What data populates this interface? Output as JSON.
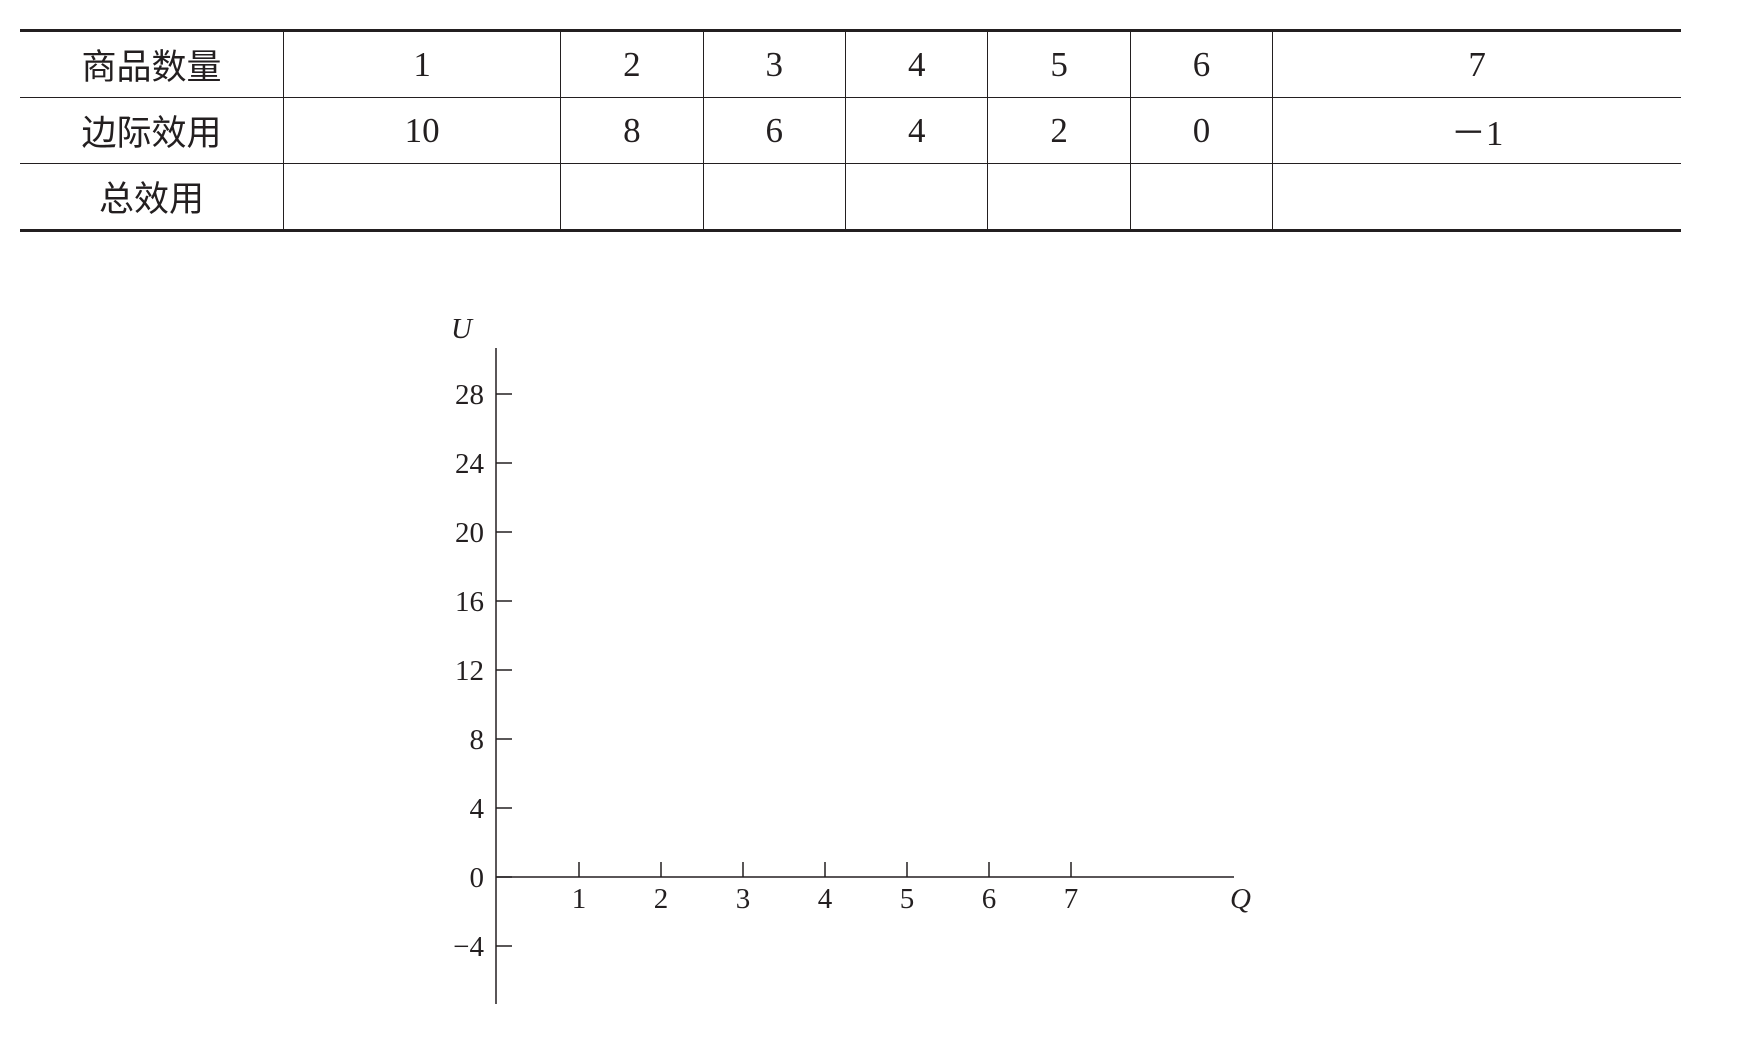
{
  "table": {
    "rows": [
      {
        "label": "商品数量",
        "cells": [
          "1",
          "2",
          "3",
          "4",
          "5",
          "6",
          "7"
        ]
      },
      {
        "label": "边际效用",
        "cells": [
          "10",
          "8",
          "6",
          "4",
          "2",
          "0",
          "－1"
        ]
      },
      {
        "label": "总效用",
        "cells": [
          "",
          "",
          "",
          "",
          "",
          "",
          ""
        ]
      }
    ]
  },
  "chart_data": {
    "type": "line",
    "series": [],
    "xlabel": "Q",
    "ylabel": "U",
    "x_ticks": [
      "1",
      "2",
      "3",
      "4",
      "5",
      "6",
      "7"
    ],
    "y_ticks": [
      "−4",
      "0",
      "4",
      "8",
      "12",
      "16",
      "20",
      "24",
      "28"
    ],
    "y_tick_values": [
      -4,
      0,
      4,
      8,
      12,
      16,
      20,
      24,
      28
    ],
    "x_tick_values": [
      1,
      2,
      3,
      4,
      5,
      6,
      7
    ],
    "grid": false
  }
}
